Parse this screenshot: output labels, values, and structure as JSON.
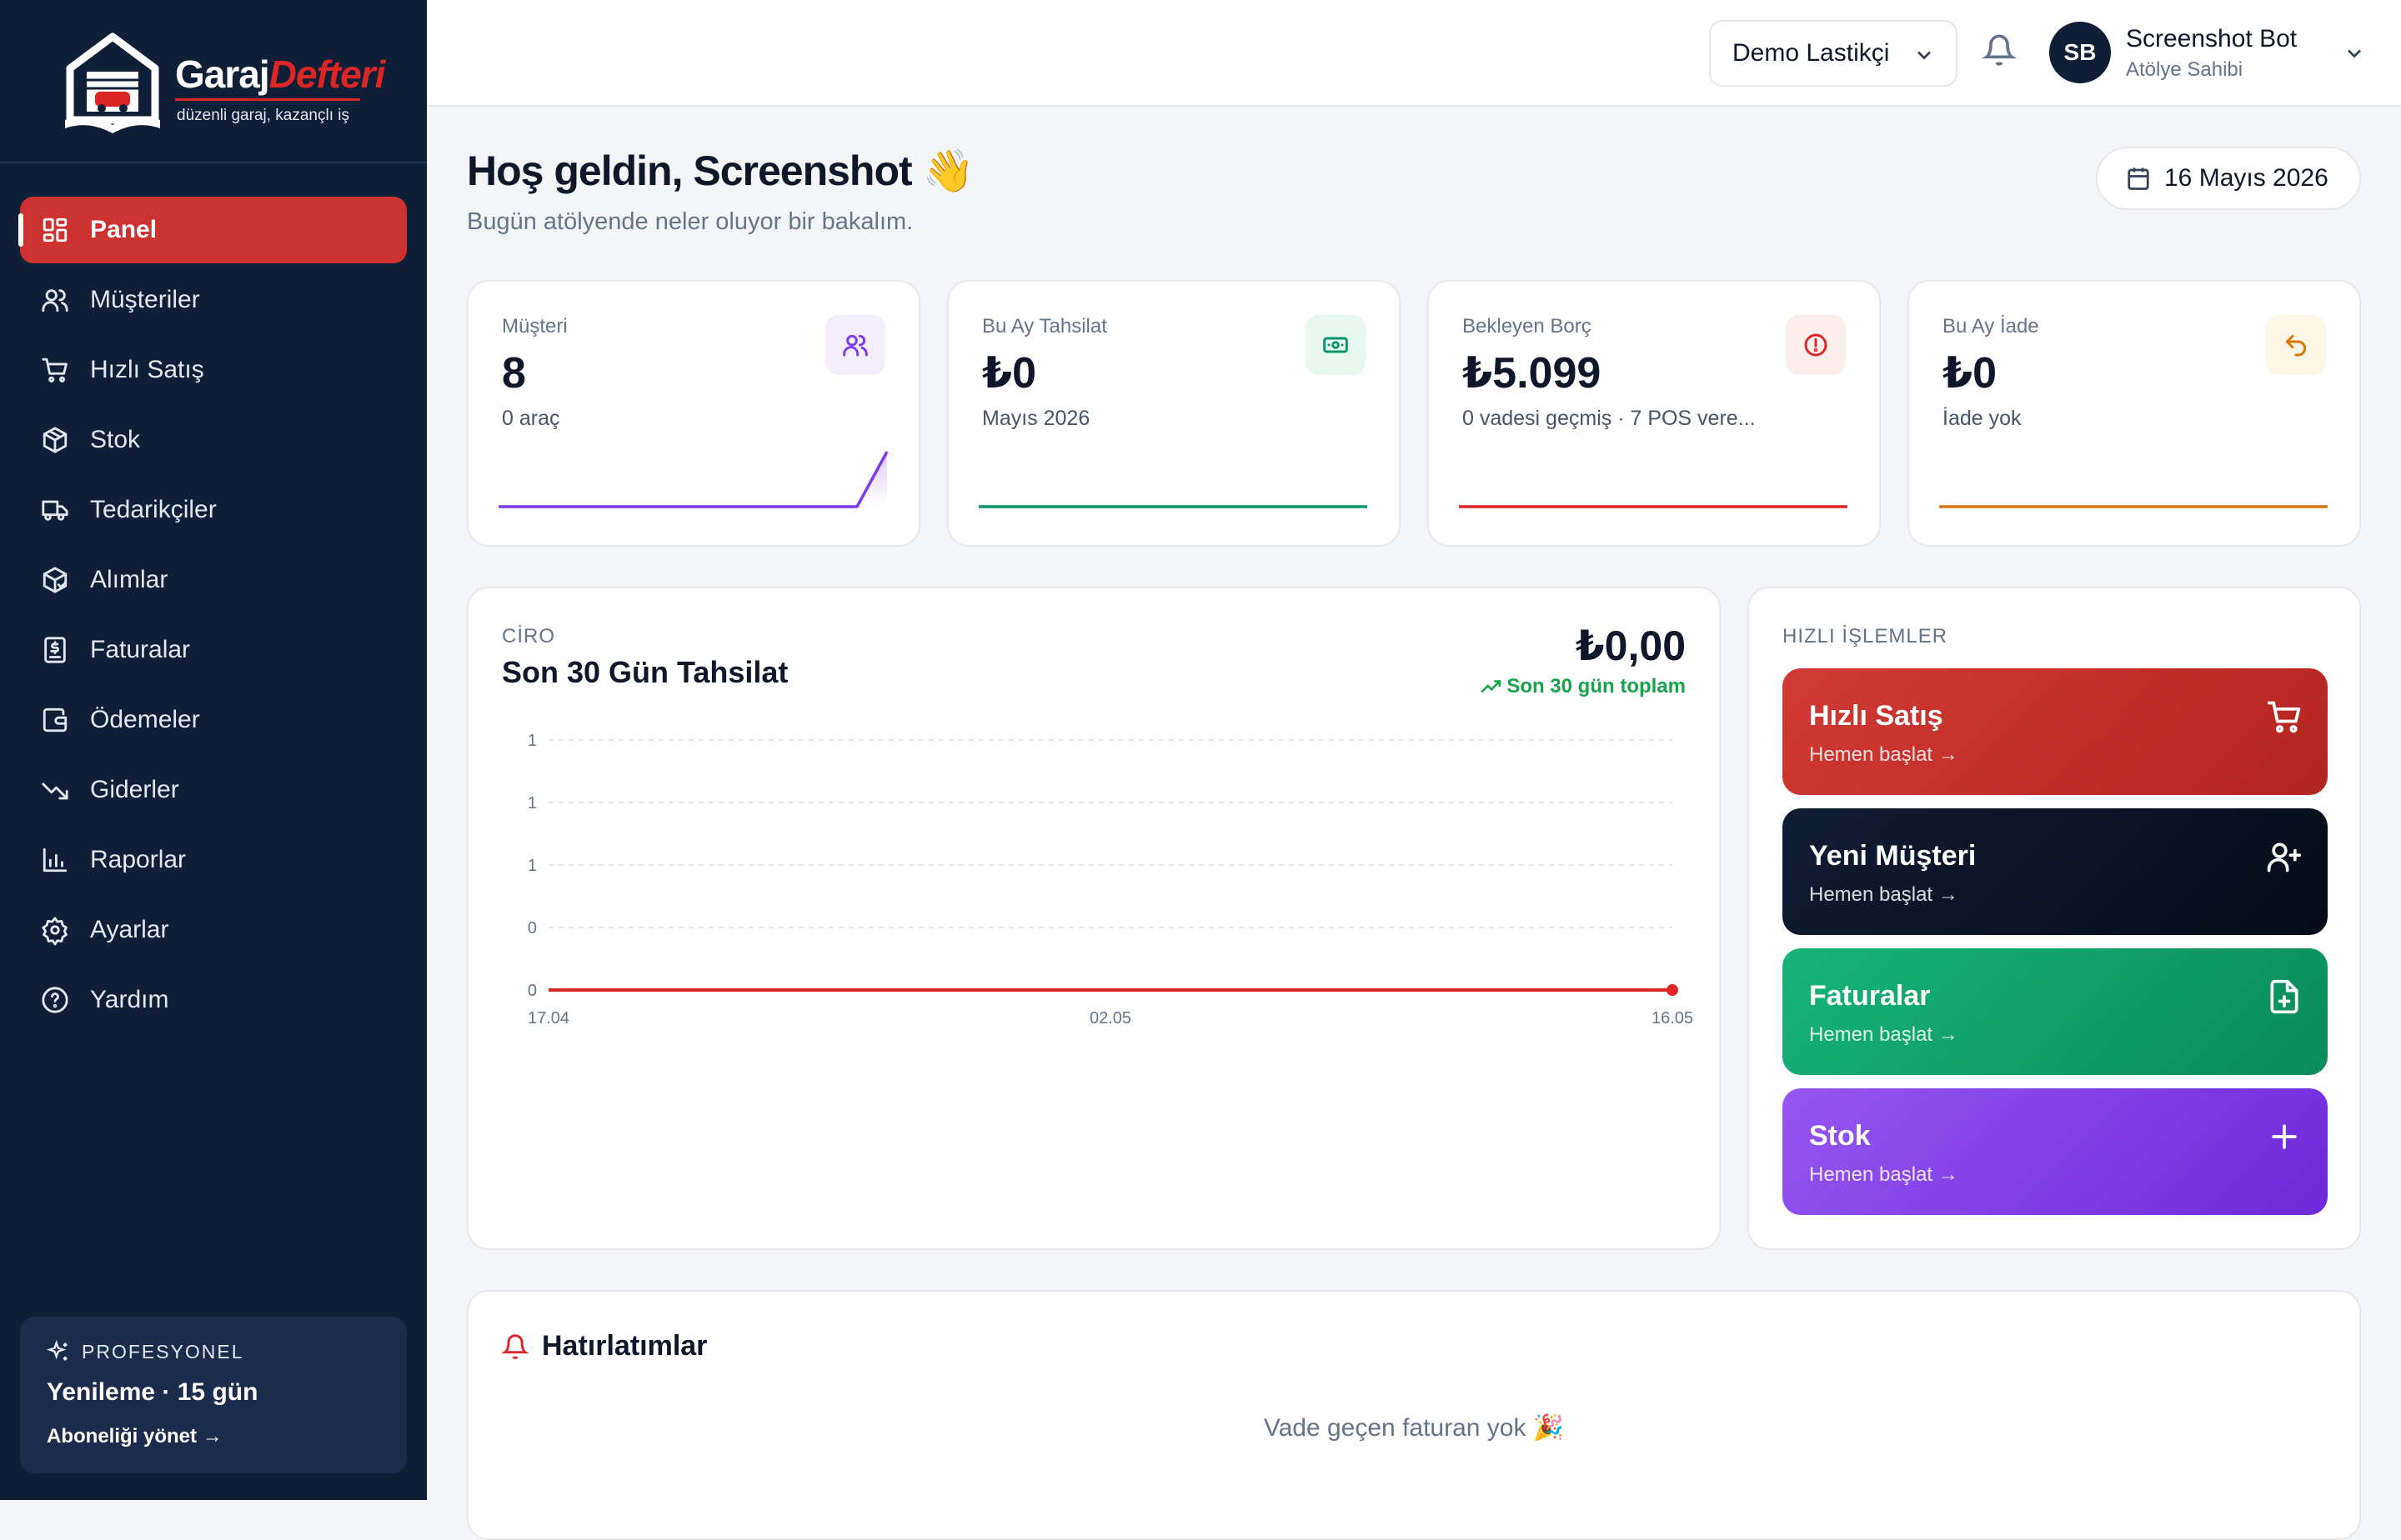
{
  "brand": {
    "name_part1": "Garaj",
    "name_part2": "Defteri",
    "tagline": "düzenli garaj, kazançlı iş"
  },
  "sidebar": {
    "items": [
      {
        "label": "Panel",
        "icon": "dashboard-icon",
        "active": true
      },
      {
        "label": "Müşteriler",
        "icon": "users-icon"
      },
      {
        "label": "Hızlı Satış",
        "icon": "cart-icon"
      },
      {
        "label": "Stok",
        "icon": "box-icon"
      },
      {
        "label": "Tedarikçiler",
        "icon": "truck-icon"
      },
      {
        "label": "Alımlar",
        "icon": "package-icon"
      },
      {
        "label": "Faturalar",
        "icon": "invoice-icon"
      },
      {
        "label": "Ödemeler",
        "icon": "wallet-icon"
      },
      {
        "label": "Giderler",
        "icon": "trending-down-icon"
      },
      {
        "label": "Raporlar",
        "icon": "bar-chart-icon"
      },
      {
        "label": "Ayarlar",
        "icon": "gear-icon"
      },
      {
        "label": "Yardım",
        "icon": "help-icon"
      }
    ],
    "plan": {
      "tier": "PROFESYONEL",
      "renewal": "Yenileme · 15 gün",
      "manage_link": "Aboneliği yönet →"
    }
  },
  "topbar": {
    "shop_select": "Demo Lastikçi",
    "user_initials": "SB",
    "user_name": "Screenshot Bot",
    "user_role": "Atölye Sahibi"
  },
  "main": {
    "greeting_title": "Hoş geldin, Screenshot 👋",
    "greeting_sub": "Bugün atölyende neler oluyor bir bakalım.",
    "date": "16 Mayıs 2026",
    "stats": [
      {
        "label": "Müşteri",
        "value": "8",
        "sub": "0 araç",
        "icon": "users-icon",
        "color": "#7c3aed",
        "icon_bg": "#f3eefe"
      },
      {
        "label": "Bu Ay Tahsilat",
        "value": "₺0",
        "sub": "Mayıs 2026",
        "icon": "banknote-icon",
        "color": "#059669",
        "icon_bg": "#e7f8f1"
      },
      {
        "label": "Bekleyen Borç",
        "value": "₺5.099",
        "sub": "0 vadesi geçmiş · 7 POS vere...",
        "icon": "alert-circle-icon",
        "color": "#dc2626",
        "icon_bg": "#fdeeee"
      },
      {
        "label": "Bu Ay İade",
        "value": "₺0",
        "sub": "İade yok",
        "icon": "undo-icon",
        "color": "#d97706",
        "icon_bg": "#fdf5e6"
      }
    ],
    "revenue": {
      "label": "CİRO",
      "title": "Son 30 Gün Tahsilat",
      "total": "₺0,00",
      "total_sub": "Son 30 gün toplam"
    },
    "quick_actions": {
      "label": "HIZLI İŞLEMLER",
      "items": [
        {
          "title": "Hızlı Satış",
          "sub": "Hemen başlat →",
          "icon": "cart-icon",
          "color": "#c9302c"
        },
        {
          "title": "Yeni Müşteri",
          "sub": "Hemen başlat →",
          "icon": "user-plus-icon",
          "color": "#0b1628"
        },
        {
          "title": "Faturalar",
          "sub": "Hemen başlat →",
          "icon": "file-plus-icon",
          "color": "#10a36b"
        },
        {
          "title": "Stok",
          "sub": "Hemen başlat →",
          "icon": "plus-icon",
          "color": "#8b45ee"
        }
      ]
    },
    "reminders": {
      "title": "Hatırlatımlar",
      "empty": "Vade geçen faturan yok 🎉"
    }
  },
  "chart_data": {
    "type": "line",
    "title": "Son 30 Gün Tahsilat",
    "x_tick_labels": [
      "17.04",
      "02.05",
      "16.05"
    ],
    "y_tick_labels": [
      "1",
      "1",
      "1",
      "0",
      "0"
    ],
    "series": [
      {
        "color": "#dc2626",
        "values": [
          0,
          0
        ]
      }
    ],
    "x": [
      "17.04",
      "16.05"
    ],
    "ylim": [
      0,
      1
    ],
    "grid": true
  }
}
